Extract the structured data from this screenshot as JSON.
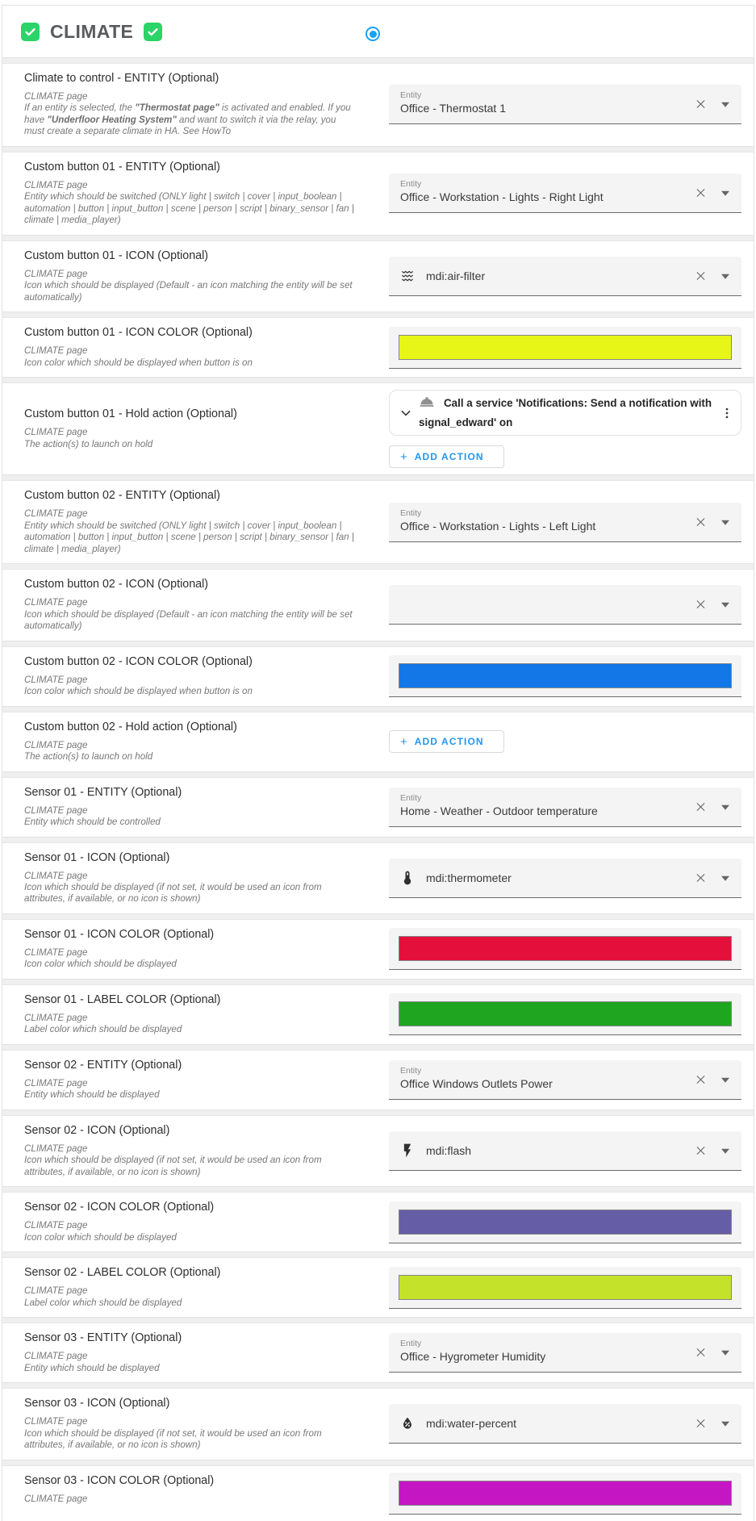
{
  "header": {
    "title": "CLIMATE",
    "checkbox_color": "#2bd468",
    "radio_color": "#18a3f2"
  },
  "labels": {
    "entity_field_label": "Entity",
    "add_action": "ADD ACTION",
    "add_action_plus": "+"
  },
  "accent": {
    "button_blue": "#2196f3"
  },
  "rows": [
    {
      "label": "Climate to control - ENTITY (Optional)",
      "page": "CLIMATE page",
      "desc_parts": [
        {
          "text": "If an entity is selected, the ",
          "bold": false
        },
        {
          "text": "\"Thermostat page\"",
          "bold": true
        },
        {
          "text": " is activated and enabled. If you have ",
          "bold": false
        },
        {
          "text": "\"Underfloor Heating System\"",
          "bold": true
        },
        {
          "text": " and want to switch it via the relay, you must create a separate climate in HA. See HowTo",
          "bold": false
        }
      ],
      "control": {
        "type": "entity",
        "field_label": "Entity",
        "value": "Office - Thermostat 1"
      }
    },
    {
      "label": "Custom button 01 - ENTITY (Optional)",
      "page": "CLIMATE page",
      "desc": "Entity which should be switched (ONLY light | switch | cover | input_boolean | automation | button | input_button | scene | person | script | binary_sensor | fan | climate | media_player)",
      "control": {
        "type": "entity",
        "field_label": "Entity",
        "value": "Office - Workstation - Lights - Right Light"
      }
    },
    {
      "label": "Custom button 01 - ICON (Optional)",
      "page": "CLIMATE page",
      "desc": "Icon which should be displayed (Default - an icon matching the entity will be set automatically)",
      "control": {
        "type": "icon",
        "icon": "air-filter-icon",
        "value": "mdi:air-filter"
      }
    },
    {
      "label": "Custom button 01 - ICON COLOR (Optional)",
      "page": "CLIMATE page",
      "desc": "Icon color which should be displayed when button is on",
      "control": {
        "type": "color",
        "value": "#e7f617"
      }
    },
    {
      "label": "Custom button 01 - Hold action (Optional)",
      "page": "CLIMATE page",
      "desc": "The action(s) to launch on hold",
      "control": {
        "type": "action",
        "card": {
          "icon": "service-bell-icon",
          "text": "Call a service 'Notifications: Send a notification with signal_edward' on"
        }
      }
    },
    {
      "label": "Custom button 02 - ENTITY (Optional)",
      "page": "CLIMATE page",
      "desc": "Entity which should be switched (ONLY light | switch | cover | input_boolean | automation | button | input_button | scene | person | script | binary_sensor | fan | climate | media_player)",
      "control": {
        "type": "entity",
        "field_label": "Entity",
        "value": "Office - Workstation - Lights - Left Light"
      }
    },
    {
      "label": "Custom button 02 - ICON (Optional)",
      "page": "CLIMATE page",
      "desc": "Icon which should be displayed (Default - an icon matching the entity will be set automatically)",
      "control": {
        "type": "icon",
        "icon": null,
        "value": ""
      }
    },
    {
      "label": "Custom button 02 - ICON COLOR (Optional)",
      "page": "CLIMATE page",
      "desc": "Icon color which should be displayed when button is on",
      "control": {
        "type": "color",
        "value": "#1377e8"
      }
    },
    {
      "label": "Custom button 02 - Hold action (Optional)",
      "page": "CLIMATE page",
      "desc": "The action(s) to launch on hold",
      "control": {
        "type": "action",
        "card": null
      }
    },
    {
      "label": "Sensor 01 - ENTITY (Optional)",
      "page": "CLIMATE page",
      "desc": "Entity which should be controlled",
      "control": {
        "type": "entity",
        "field_label": "Entity",
        "value": "Home - Weather - Outdoor temperature"
      }
    },
    {
      "label": "Sensor 01 - ICON (Optional)",
      "page": "CLIMATE page",
      "desc": "Icon which should be displayed (if not set, it would be used an icon from attributes, if available, or no icon is shown)",
      "control": {
        "type": "icon",
        "icon": "thermometer-icon",
        "value": "mdi:thermometer"
      }
    },
    {
      "label": "Sensor 01 - ICON COLOR (Optional)",
      "page": "CLIMATE page",
      "desc": "Icon color which should be displayed",
      "control": {
        "type": "color",
        "value": "#e50f3c"
      }
    },
    {
      "label": "Sensor 01 - LABEL COLOR (Optional)",
      "page": "CLIMATE page",
      "desc": "Label color which should be displayed",
      "control": {
        "type": "color",
        "value": "#1fa51f"
      }
    },
    {
      "label": "Sensor 02 - ENTITY (Optional)",
      "page": "CLIMATE page",
      "desc": "Entity which should be displayed",
      "control": {
        "type": "entity",
        "field_label": "Entity",
        "value": "Office Windows Outlets Power"
      }
    },
    {
      "label": "Sensor 02 - ICON (Optional)",
      "page": "CLIMATE page",
      "desc": "Icon which should be displayed (if not set, it would be used an icon from attributes, if available, or no icon is shown)",
      "control": {
        "type": "icon",
        "icon": "flash-icon",
        "value": "mdi:flash"
      }
    },
    {
      "label": "Sensor 02 - ICON COLOR (Optional)",
      "page": "CLIMATE page",
      "desc": "Icon color which should be displayed",
      "control": {
        "type": "color",
        "value": "#655da6"
      }
    },
    {
      "label": "Sensor 02 - LABEL COLOR (Optional)",
      "page": "CLIMATE page",
      "desc": "Label color which should be displayed",
      "control": {
        "type": "color",
        "value": "#c5e22b"
      }
    },
    {
      "label": "Sensor 03 - ENTITY (Optional)",
      "page": "CLIMATE page",
      "desc": "Entity which should be displayed",
      "control": {
        "type": "entity",
        "field_label": "Entity",
        "value": "Office - Hygrometer Humidity"
      }
    },
    {
      "label": "Sensor 03 - ICON (Optional)",
      "page": "CLIMATE page",
      "desc": "Icon which should be displayed (if not set, it would be used an icon from attributes, if available, or no icon is shown)",
      "control": {
        "type": "icon",
        "icon": "water-percent-icon",
        "value": "mdi:water-percent"
      }
    },
    {
      "label": "Sensor 03 - ICON COLOR (Optional)",
      "page": "CLIMATE page",
      "desc": "",
      "control": {
        "type": "color",
        "value": "#c516c4"
      }
    }
  ]
}
